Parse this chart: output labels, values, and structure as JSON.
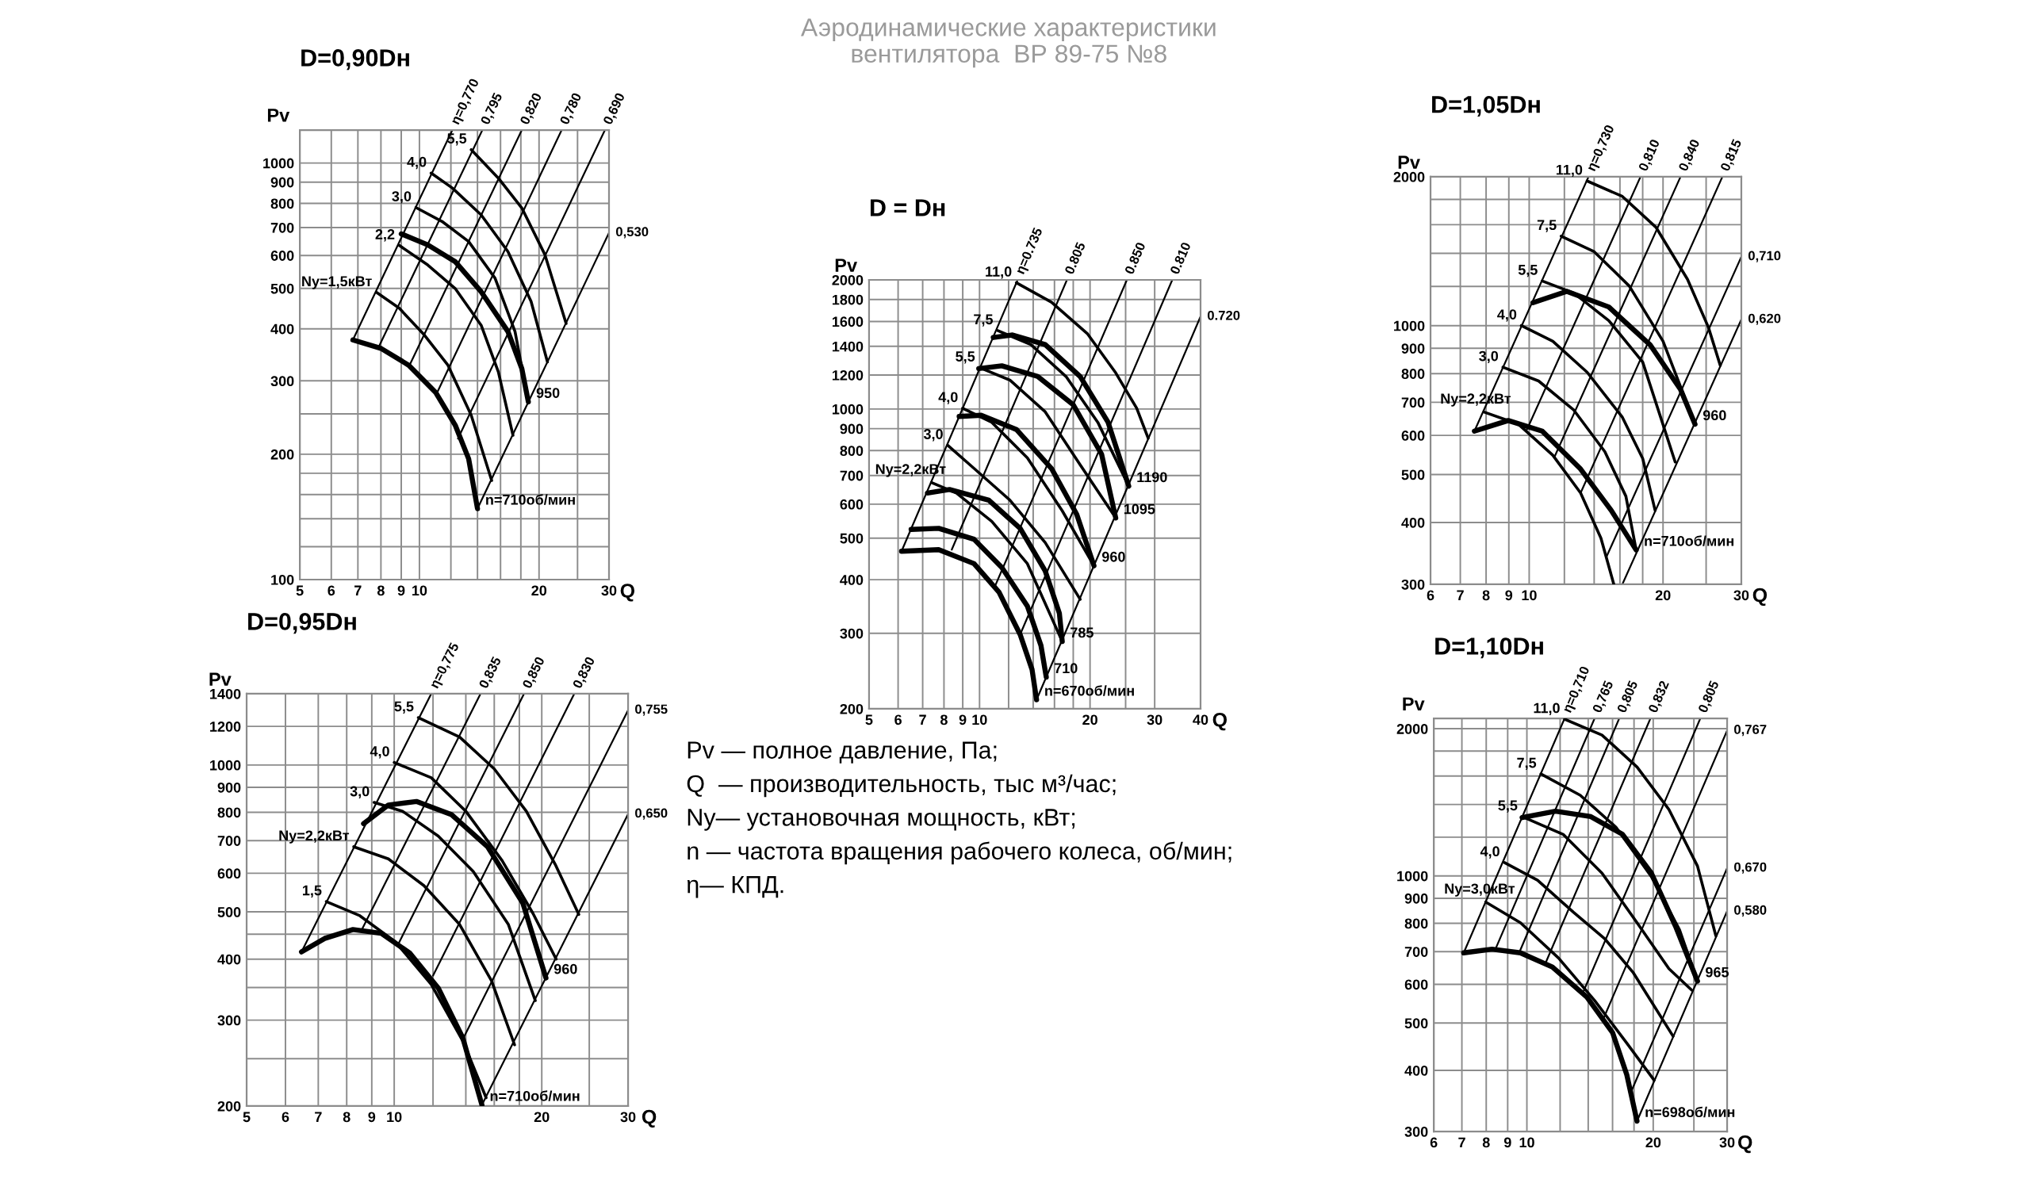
{
  "chart_data": [
    {
      "type": "other",
      "title": "Аэродинамические характеристики\nвентилятора  ВР 89-75 №8",
      "annotations": [
        "Pv — полное давление, Па;",
        "Q  — производительность, тыс м³/час;",
        "Ny— установочная мощность, кВт;",
        "n — частота вращения рабочего колеса, об/мин;",
        "η— КПД."
      ]
    },
    {
      "type": "line",
      "title": "D=0,90Dн",
      "xlabel": "Q",
      "ylabel": "Pv",
      "log": "xy",
      "grid": true,
      "xlim": [
        5,
        30
      ],
      "ylim": [
        100,
        1200
      ],
      "xticks": [
        5,
        6,
        7,
        8,
        9,
        10,
        {
          "value": 12,
          "label": null
        },
        {
          "value": 14,
          "label": null
        },
        {
          "value": 16,
          "label": null
        },
        {
          "value": 18,
          "label": null
        },
        20,
        {
          "value": 25,
          "label": null
        },
        30
      ],
      "yticks": [
        100,
        {
          "value": 120,
          "label": null
        },
        {
          "value": 140,
          "label": null
        },
        {
          "value": 160,
          "label": null
        },
        {
          "value": 180,
          "label": null
        },
        200,
        {
          "value": 250,
          "label": null
        },
        300,
        400,
        500,
        600,
        700,
        800,
        900,
        1000
      ],
      "series": [
        {
          "x": [
            6.8,
            12.1
          ],
          "values": [
            376,
            1200
          ]
        },
        {
          "x": [
            7.9,
            14.4
          ],
          "values": [
            362,
            1200
          ]
        },
        {
          "x": [
            9.4,
            18.1
          ],
          "values": [
            324,
            1200
          ]
        },
        {
          "x": [
            11.0,
            22.8
          ],
          "values": [
            277,
            1200
          ]
        },
        {
          "x": [
            12.5,
            29.3
          ],
          "values": [
            218,
            1200
          ]
        },
        {
          "x": [
            14.0,
            30
          ],
          "values": [
            148,
            680
          ]
        },
        {
          "x": [
            6.8,
            8.0,
            9.4,
            11.0,
            12.3,
            13.3,
            14.0
          ],
          "values": [
            376,
            359,
            327,
            281,
            235,
            195,
            148
          ]
        },
        {
          "x": [
            9.0,
            10.5,
            12.3,
            14.3,
            16.7,
            18.1,
            18.8
          ],
          "values": [
            676,
            636,
            580,
            491,
            394,
            321,
            267
          ]
        },
        {
          "x": [
            7.8,
            8.9,
            10.3,
            11.8,
            13.5,
            15.2
          ],
          "values": [
            489,
            448,
            386,
            327,
            248,
            173
          ]
        },
        {
          "x": [
            8.9,
            10.5,
            12.3,
            14.3,
            15.8,
            17.2
          ],
          "values": [
            634,
            569,
            500,
            408,
            315,
            222
          ]
        },
        {
          "x": [
            9.8,
            11.4,
            13.3,
            15.5,
            17.4,
            18.8
          ],
          "values": [
            782,
            724,
            648,
            529,
            394,
            267
          ]
        },
        {
          "x": [
            10.7,
            12.1,
            14.3,
            16.7,
            19.1,
            21.0
          ],
          "values": [
            946,
            871,
            751,
            613,
            465,
            333
          ]
        },
        {
          "x": [
            13.5,
            15.8,
            18.1,
            20.7,
            23.4
          ],
          "values": [
            1077,
            920,
            780,
            602,
            412
          ]
        }
      ],
      "annotations": [
        {
          "text": "η=0,770",
          "x": 12.1,
          "y": 1200
        },
        {
          "text": "0,795",
          "x": 14.4,
          "y": 1200
        },
        {
          "text": "0,820",
          "x": 18.1,
          "y": 1200
        },
        {
          "text": "0,780",
          "x": 22.8,
          "y": 1200
        },
        {
          "text": "0,690",
          "x": 29.3,
          "y": 1200
        },
        {
          "text": "0,530",
          "x": 30,
          "y": 680
        },
        {
          "text": "n=710об/мин",
          "x": 14.0,
          "y": 148
        },
        {
          "text": "950",
          "x": 18.8,
          "y": 267
        },
        {
          "text": "Ny=1,5кВт",
          "x": 7.8,
          "y": 489
        },
        {
          "text": "2,2",
          "x": 8.9,
          "y": 634
        },
        {
          "text": "3,0",
          "x": 9.8,
          "y": 782
        },
        {
          "text": "4,0",
          "x": 10.7,
          "y": 946
        },
        {
          "text": "5,5",
          "x": 13.5,
          "y": 1077
        }
      ]
    },
    {
      "type": "line",
      "title": "D = Dн",
      "xlabel": "Q",
      "ylabel": "Pv",
      "log": "xy",
      "grid": true,
      "xlim": [
        5,
        40
      ],
      "ylim": [
        200,
        2000
      ],
      "xticks": [
        5,
        6,
        7,
        8,
        9,
        10,
        {
          "value": 12,
          "label": null
        },
        {
          "value": 14,
          "label": null
        },
        {
          "value": 16,
          "label": null
        },
        {
          "value": 18,
          "label": null
        },
        20,
        {
          "value": 25,
          "label": null
        },
        30,
        40
      ],
      "yticks": [
        200,
        300,
        400,
        500,
        600,
        700,
        800,
        900,
        1000,
        1200,
        1400,
        1600,
        1800,
        2000
      ],
      "series": [
        {
          "x": [
            6.13,
            12.7
          ],
          "values": [
            466,
            2000
          ]
        },
        {
          "x": [
            8.4,
            17.3
          ],
          "values": [
            470,
            2000
          ]
        },
        {
          "x": [
            11.0,
            25.2
          ],
          "values": [
            385,
            2000
          ]
        },
        {
          "x": [
            12.9,
            33.5
          ],
          "values": [
            298,
            2000
          ]
        },
        {
          "x": [
            14.3,
            40
          ],
          "values": [
            210,
            1643
          ]
        },
        {
          "x": [
            6.13,
            7.74,
            9.66,
            11.3,
            12.9,
            13.9,
            14.3
          ],
          "values": [
            466,
            470,
            436,
            374,
            298,
            247,
            210
          ]
        },
        {
          "x": [
            6.51,
            7.74,
            9.66,
            11.5,
            13.5,
            14.7,
            15.2
          ],
          "values": [
            524,
            527,
            497,
            427,
            347,
            281,
            237
          ]
        },
        {
          "x": [
            7.21,
            8.28,
            10.6,
            12.9,
            15.1,
            16.5,
            16.8
          ],
          "values": [
            637,
            649,
            613,
            527,
            419,
            334,
            287
          ]
        },
        {
          "x": [
            8.8,
            10.1,
            12.6,
            15.7,
            18.4,
            20.5
          ],
          "values": [
            961,
            967,
            896,
            727,
            568,
            431
          ]
        },
        {
          "x": [
            9.95,
            11.5,
            14.4,
            18.0,
            21.5,
            23.5
          ],
          "values": [
            1242,
            1261,
            1191,
            1023,
            785,
            557
          ]
        },
        {
          "x": [
            10.9,
            12.3,
            15.1,
            18.8,
            22.4,
            25.5
          ],
          "values": [
            1468,
            1488,
            1413,
            1191,
            931,
            661
          ]
        },
        {
          "x": [
            7.4,
            8.65,
            10.8,
            13.5,
            16.8
          ],
          "values": [
            674,
            637,
            547,
            436,
            287
          ]
        },
        {
          "x": [
            8.19,
            9.66,
            12.1,
            15.1,
            18.8
          ],
          "values": [
            823,
            727,
            613,
            488,
            360
          ]
        },
        {
          "x": [
            8.99,
            10.8,
            13.5,
            16.8,
            20.5
          ],
          "values": [
            1004,
            931,
            769,
            579,
            431
          ]
        },
        {
          "x": [
            10.0,
            12.1,
            15.1,
            18.8,
            23.5
          ],
          "values": [
            1249,
            1168,
            985,
            741,
            557
          ]
        },
        {
          "x": [
            11.2,
            13.8,
            17.2,
            21.0,
            25.5
          ],
          "values": [
            1524,
            1413,
            1191,
            931,
            661
          ]
        },
        {
          "x": [
            12.6,
            15.7,
            19.7,
            23.5,
            26.8,
            28.8
          ],
          "values": [
            1970,
            1774,
            1496,
            1214,
            1004,
            855
          ]
        }
      ],
      "annotations": [
        {
          "text": "η=0.735",
          "x": 12.7,
          "y": 2000
        },
        {
          "text": "0.805",
          "x": 17.3,
          "y": 2000
        },
        {
          "text": "0.850",
          "x": 25.2,
          "y": 2000
        },
        {
          "text": "0.810",
          "x": 33.5,
          "y": 2000
        },
        {
          "text": "0.720",
          "x": 40,
          "y": 1643
        },
        {
          "text": "n=670об/мин",
          "x": 14.3,
          "y": 210
        },
        {
          "text": "710",
          "x": 15.2,
          "y": 237
        },
        {
          "text": "785",
          "x": 16.8,
          "y": 287
        },
        {
          "text": "960",
          "x": 20.5,
          "y": 431
        },
        {
          "text": "1095",
          "x": 23.5,
          "y": 557
        },
        {
          "text": "1190",
          "x": 25.5,
          "y": 661
        },
        {
          "text": "Ny=2,2кВт",
          "x": 7.4,
          "y": 674
        },
        {
          "text": "3,0",
          "x": 8.19,
          "y": 823
        },
        {
          "text": "4,0",
          "x": 8.99,
          "y": 1004
        },
        {
          "text": "5,5",
          "x": 10.0,
          "y": 1249
        },
        {
          "text": "7,5",
          "x": 11.2,
          "y": 1524
        },
        {
          "text": "11,0",
          "x": 12.6,
          "y": 1970
        }
      ]
    },
    {
      "type": "line",
      "title": "D=1,05Dн",
      "xlabel": "Q",
      "ylabel": "Pv",
      "log": "xy",
      "grid": true,
      "xlim": [
        6,
        30
      ],
      "ylim": [
        300,
        2000
      ],
      "xticks": [
        6,
        7,
        8,
        9,
        10,
        {
          "value": 12,
          "label": null
        },
        {
          "value": 14,
          "label": null
        },
        {
          "value": 16,
          "label": null
        },
        {
          "value": 18,
          "label": null
        },
        20,
        {
          "value": 25,
          "label": null
        },
        30
      ],
      "yticks": [
        300,
        400,
        500,
        600,
        700,
        800,
        900,
        1000,
        {
          "value": 1200,
          "label": null
        },
        {
          "value": 1400,
          "label": null
        },
        {
          "value": 1600,
          "label": null
        },
        {
          "value": 1800,
          "label": null
        },
        2000
      ],
      "series": [
        {
          "x": [
            7.53,
            13.6
          ],
          "values": [
            612,
            2000
          ]
        },
        {
          "x": [
            9.89,
            17.8
          ],
          "values": [
            617,
            2000
          ]
        },
        {
          "x": [
            11.4,
            21.9
          ],
          "values": [
            543,
            2000
          ]
        },
        {
          "x": [
            13.05,
            27.2
          ],
          "values": [
            459,
            2000
          ]
        },
        {
          "x": [
            14.9,
            30
          ],
          "values": [
            340,
            1378
          ]
        },
        {
          "x": [
            16.2,
            30
          ],
          "values": [
            300,
            1029
          ]
        },
        {
          "x": [
            7.53,
            8.97,
            10.7,
            13.05,
            15.3,
            17.4
          ],
          "values": [
            612,
            643,
            612,
            513,
            423,
            352
          ]
        },
        {
          "x": [
            10.2,
            12.15,
            15.1,
            18.7,
            21.9,
            23.6
          ],
          "values": [
            1113,
            1173,
            1091,
            915,
            743,
            632
          ]
        },
        {
          "x": [
            7.91,
            9.46,
            11.3,
            13.05,
            14.5,
            15.5
          ],
          "values": [
            669,
            632,
            547,
            459,
            372,
            300
          ]
        },
        {
          "x": [
            8.73,
            10.5,
            12.6,
            14.8,
            16.5,
            17.4
          ],
          "values": [
            824,
            773,
            675,
            556,
            452,
            352
          ]
        },
        {
          "x": [
            9.6,
            11.3,
            13.5,
            16.2,
            18.0,
            19.2
          ],
          "values": [
            1000,
            930,
            805,
            653,
            539,
            423
          ]
        },
        {
          "x": [
            10.7,
            12.6,
            15.1,
            18.0,
            21.3
          ],
          "values": [
            1231,
            1164,
            1024,
            844,
            530
          ]
        },
        {
          "x": [
            11.8,
            14.0,
            16.8,
            20.0,
            23.6
          ],
          "values": [
            1517,
            1411,
            1202,
            930,
            632
          ]
        },
        {
          "x": [
            13.5,
            16.2,
            19.3,
            22.7,
            25.3,
            26.9
          ],
          "values": [
            1961,
            1825,
            1579,
            1241,
            992,
            831
          ]
        }
      ],
      "annotations": [
        {
          "text": "η=0,730",
          "x": 13.6,
          "y": 2000
        },
        {
          "text": "0,810",
          "x": 17.8,
          "y": 2000
        },
        {
          "text": "0,840",
          "x": 21.9,
          "y": 2000
        },
        {
          "text": "0,815",
          "x": 27.2,
          "y": 2000
        },
        {
          "text": "0,710",
          "x": 30,
          "y": 1378
        },
        {
          "text": "0,620",
          "x": 30,
          "y": 1029
        },
        {
          "text": "n=710об/мин",
          "x": 17.4,
          "y": 352
        },
        {
          "text": "960",
          "x": 23.6,
          "y": 632
        },
        {
          "text": "Ny=2,2кВт",
          "x": 7.91,
          "y": 669
        },
        {
          "text": "3,0",
          "x": 8.73,
          "y": 824
        },
        {
          "text": "4,0",
          "x": 9.6,
          "y": 1000
        },
        {
          "text": "5,5",
          "x": 10.7,
          "y": 1231
        },
        {
          "text": "7,5",
          "x": 11.8,
          "y": 1517
        },
        {
          "text": "11,0",
          "x": 13.5,
          "y": 1961
        }
      ]
    },
    {
      "type": "line",
      "title": "D=0,95Dн",
      "xlabel": "Q",
      "ylabel": "Pv",
      "log": "xy",
      "grid": true,
      "xlim": [
        5,
        30
      ],
      "ylim": [
        200,
        1400
      ],
      "xticks": [
        5,
        6,
        7,
        8,
        9,
        10,
        {
          "value": 12,
          "label": null
        },
        {
          "value": 14,
          "label": null
        },
        {
          "value": 16,
          "label": null
        },
        {
          "value": 18,
          "label": null
        },
        20,
        {
          "value": 25,
          "label": null
        },
        30
      ],
      "yticks": [
        200,
        {
          "value": 250,
          "label": null
        },
        300,
        {
          "value": 350,
          "label": null
        },
        400,
        {
          "value": 450,
          "label": null
        },
        500,
        600,
        700,
        800,
        900,
        1000,
        1200,
        1400
      ],
      "series": [
        {
          "x": [
            6.47,
            11.9
          ],
          "values": [
            414,
            1400
          ]
        },
        {
          "x": [
            8.59,
            15.0
          ],
          "values": [
            460,
            1400
          ]
        },
        {
          "x": [
            10.2,
            18.4
          ],
          "values": [
            430,
            1400
          ]
        },
        {
          "x": [
            12.0,
            23.3
          ],
          "values": [
            370,
            1400
          ]
        },
        {
          "x": [
            13.9,
            30
          ],
          "values": [
            278,
            1295
          ]
        },
        {
          "x": [
            15.1,
            30
          ],
          "values": [
            201,
            793
          ]
        },
        {
          "x": [
            6.47,
            7.21,
            8.24,
            9.41,
            10.75,
            12.3,
            13.8,
            15.1
          ],
          "values": [
            414,
            441,
            460,
            452,
            412,
            349,
            276,
            201
          ]
        },
        {
          "x": [
            8.66,
            9.73,
            11.1,
            13.1,
            15.5,
            18.3,
            20.4
          ],
          "values": [
            758,
            828,
            842,
            791,
            680,
            521,
            366
          ]
        },
        {
          "x": [
            7.27,
            8.51,
            10.06,
            11.9,
            13.8,
            15.4
          ],
          "values": [
            525,
            491,
            434,
            355,
            272,
            208
          ]
        },
        {
          "x": [
            8.27,
            9.73,
            11.5,
            13.6,
            15.8,
            17.6
          ],
          "values": [
            680,
            642,
            566,
            471,
            361,
            267
          ]
        },
        {
          "x": [
            9.1,
            10.4,
            12.3,
            14.5,
            17.1,
            19.4
          ],
          "values": [
            838,
            804,
            715,
            605,
            471,
            329
          ]
        },
        {
          "x": [
            10.0,
            11.9,
            14.0,
            16.6,
            19.2,
            21.4
          ],
          "values": [
            1012,
            942,
            804,
            637,
            496,
            400
          ]
        },
        {
          "x": [
            11.2,
            13.6,
            16.0,
            18.6,
            21.3,
            23.8
          ],
          "values": [
            1251,
            1141,
            982,
            804,
            626,
            494
          ]
        }
      ],
      "annotations": [
        {
          "text": "η=0,775",
          "x": 11.9,
          "y": 1400
        },
        {
          "text": "0,835",
          "x": 15.0,
          "y": 1400
        },
        {
          "text": "0,850",
          "x": 18.4,
          "y": 1400
        },
        {
          "text": "0,830",
          "x": 23.3,
          "y": 1400
        },
        {
          "text": "0,755",
          "x": 30,
          "y": 1295
        },
        {
          "text": "0,650",
          "x": 30,
          "y": 793
        },
        {
          "text": "n=710об/мин",
          "x": 15.1,
          "y": 201
        },
        {
          "text": "960",
          "x": 20.4,
          "y": 366
        },
        {
          "text": "1,5",
          "x": 7.27,
          "y": 525
        },
        {
          "text": "Ny=2,2кВт",
          "x": 8.27,
          "y": 680
        },
        {
          "text": "3,0",
          "x": 9.1,
          "y": 838
        },
        {
          "text": "4,0",
          "x": 10.0,
          "y": 1012
        },
        {
          "text": "5,5",
          "x": 11.2,
          "y": 1251
        }
      ]
    },
    {
      "type": "line",
      "title": "D=1,10Dн",
      "xlabel": "Q",
      "ylabel": "Pv",
      "log": "xy",
      "grid": true,
      "xlim": [
        6,
        30
      ],
      "ylim": [
        300,
        2100
      ],
      "xticks": [
        6,
        7,
        8,
        9,
        10,
        {
          "value": 12,
          "label": null
        },
        {
          "value": 14,
          "label": null
        },
        {
          "value": 16,
          "label": null
        },
        {
          "value": 18,
          "label": null
        },
        20,
        {
          "value": 25,
          "label": null
        },
        30
      ],
      "yticks": [
        300,
        400,
        500,
        600,
        700,
        800,
        900,
        1000,
        {
          "value": 1200,
          "label": null
        },
        {
          "value": 1400,
          "label": null
        },
        {
          "value": 1600,
          "label": null
        },
        {
          "value": 1800,
          "label": null
        },
        2000
      ],
      "series": [
        {
          "x": [
            7.07,
            12.3
          ],
          "values": [
            696,
            2100
          ]
        },
        {
          "x": [
            8.45,
            14.5
          ],
          "values": [
            714,
            2100
          ]
        },
        {
          "x": [
            9.61,
            16.6
          ],
          "values": [
            700,
            2100
          ]
        },
        {
          "x": [
            11.05,
            19.7
          ],
          "values": [
            660,
            2100
          ]
        },
        {
          "x": [
            13.6,
            25.9
          ],
          "values": [
            577,
            2100
          ]
        },
        {
          "x": [
            15.2,
            30
          ],
          "values": [
            509,
            1983
          ]
        },
        {
          "x": [
            17.6,
            30
          ],
          "values": [
            357,
            1037
          ]
        },
        {
          "x": [
            18.3,
            30
          ],
          "values": [
            315,
            847
          ]
        },
        {
          "x": [
            7.07,
            8.26,
            9.65,
            11.5,
            13.9,
            16.0,
            17.3,
            18.3
          ],
          "values": [
            696,
            708,
            696,
            651,
            565,
            478,
            392,
            315
          ]
        },
        {
          "x": [
            9.74,
            11.7,
            14.2,
            16.9,
            19.8,
            22.6,
            25.5
          ],
          "values": [
            1316,
            1356,
            1322,
            1216,
            1013,
            789,
            609
          ]
        },
        {
          "x": [
            7.98,
            9.65,
            11.9,
            14.5,
            17.3,
            20.1
          ],
          "values": [
            884,
            802,
            679,
            556,
            455,
            382
          ]
        },
        {
          "x": [
            8.84,
            10.6,
            12.9,
            15.3,
            17.9,
            22.3
          ],
          "values": [
            1065,
            980,
            843,
            745,
            635,
            470
          ]
        },
        {
          "x": [
            9.74,
            12.2,
            15.1,
            18.3,
            21.8,
            24.7
          ],
          "values": [
            1322,
            1216,
            1013,
            802,
            646,
            584
          ]
        },
        {
          "x": [
            10.8,
            13.4,
            16.3,
            19.8,
            23.1,
            25.5
          ],
          "values": [
            1616,
            1462,
            1258,
            996,
            776,
            609
          ]
        },
        {
          "x": [
            12.3,
            15.1,
            18.3,
            21.8,
            25.5,
            28.2
          ],
          "values": [
            2092,
            1941,
            1670,
            1367,
            1047,
            754
          ]
        }
      ],
      "annotations": [
        {
          "text": "η=0,710",
          "x": 12.3,
          "y": 2100
        },
        {
          "text": "0,765",
          "x": 14.5,
          "y": 2100
        },
        {
          "text": "0,805",
          "x": 16.6,
          "y": 2100
        },
        {
          "text": "0,832",
          "x": 19.7,
          "y": 2100
        },
        {
          "text": "0,805",
          "x": 25.9,
          "y": 2100
        },
        {
          "text": "0,767",
          "x": 30,
          "y": 1983
        },
        {
          "text": "0,670",
          "x": 30,
          "y": 1037
        },
        {
          "text": "0,580",
          "x": 30,
          "y": 847
        },
        {
          "text": "n=698об/мин",
          "x": 18.3,
          "y": 315
        },
        {
          "text": "965",
          "x": 25.5,
          "y": 609
        },
        {
          "text": "Ny=3,0кВт",
          "x": 7.98,
          "y": 884
        },
        {
          "text": "4,0",
          "x": 8.84,
          "y": 1065
        },
        {
          "text": "5,5",
          "x": 9.74,
          "y": 1322
        },
        {
          "text": "7,5",
          "x": 10.8,
          "y": 1616
        },
        {
          "text": "11,0",
          "x": 12.3,
          "y": 2092
        }
      ]
    }
  ]
}
